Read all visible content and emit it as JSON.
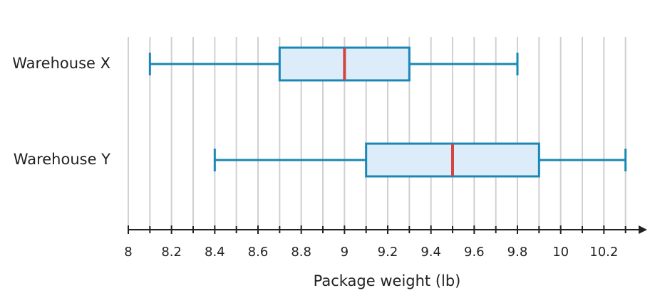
{
  "chart_data": {
    "type": "boxplot",
    "x_label": "Package weight (lb)",
    "categories": [
      "Warehouse X",
      "Warehouse Y"
    ],
    "boxes": [
      {
        "min": 8.1,
        "q1": 8.7,
        "median": 9,
        "q3": 9.3,
        "max": 9.8
      },
      {
        "min": 8.4,
        "q1": 9.1,
        "median": 9.5,
        "q3": 9.9,
        "max": 10.3
      }
    ],
    "box_color": "#1a87b4",
    "box_fill": "#dcecf8",
    "median_color": "#d24545",
    "xlim": [
      8,
      10.4
    ],
    "xticks": [
      8,
      8.2,
      8.4,
      8.6,
      8.8,
      9,
      9.2,
      9.4,
      9.6,
      9.8,
      10,
      10.2
    ],
    "minor_xticks": [
      8.1,
      8.3,
      8.5,
      8.7,
      8.9,
      9.1,
      9.3,
      9.5,
      9.7,
      9.9,
      10.1,
      10.3
    ],
    "grid": true
  }
}
